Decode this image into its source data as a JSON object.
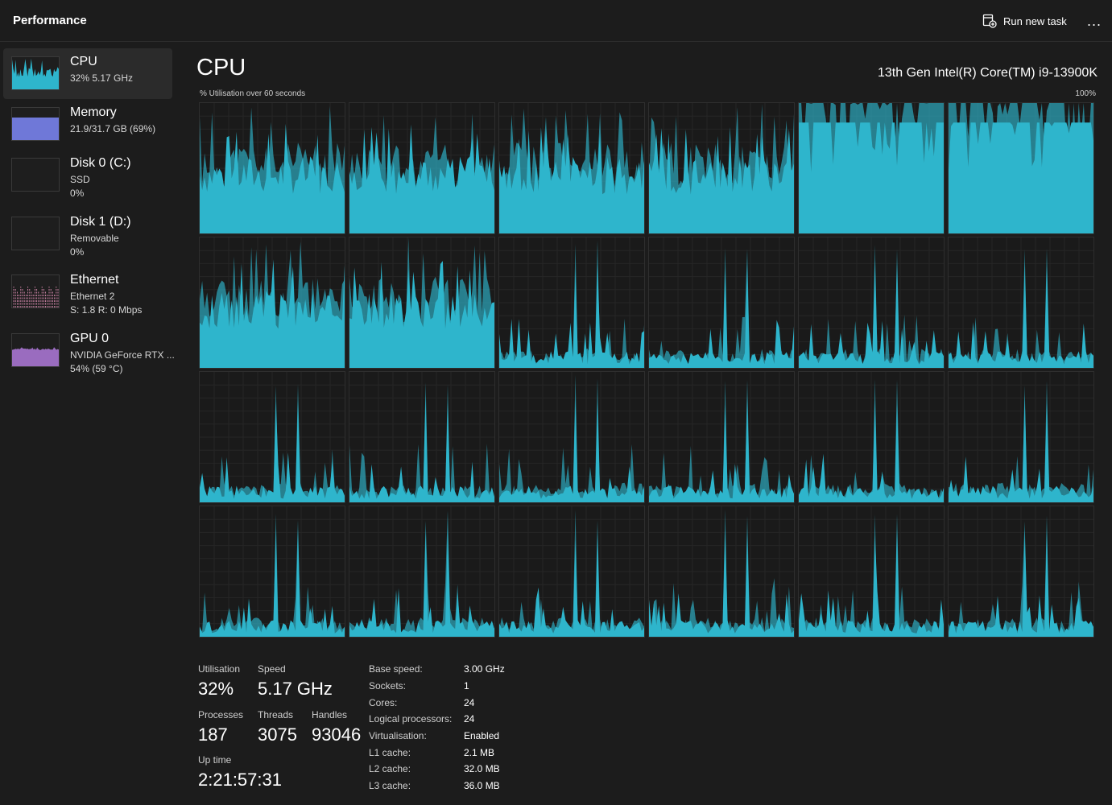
{
  "header": {
    "title": "Performance",
    "run_new_task": "Run new task",
    "more": "..."
  },
  "sidebar": {
    "items": [
      {
        "title": "CPU",
        "sub1": "32%  5.17 GHz",
        "sub2": ""
      },
      {
        "title": "Memory",
        "sub1": "21.9/31.7 GB (69%)",
        "sub2": ""
      },
      {
        "title": "Disk 0 (C:)",
        "sub1": "SSD",
        "sub2": "0%"
      },
      {
        "title": "Disk 1 (D:)",
        "sub1": "Removable",
        "sub2": "0%"
      },
      {
        "title": "Ethernet",
        "sub1": "Ethernet 2",
        "sub2": "S: 1.8  R: 0 Mbps"
      },
      {
        "title": "GPU 0",
        "sub1": "NVIDIA GeForce RTX ...",
        "sub2": "54%  (59 °C)"
      }
    ]
  },
  "main": {
    "title": "CPU",
    "model": "13th Gen Intel(R) Core(TM) i9-13900K",
    "axis_left": "% Utilisation over 60 seconds",
    "axis_right": "100%"
  },
  "stats": {
    "utilisation_label": "Utilisation",
    "utilisation": "32%",
    "speed_label": "Speed",
    "speed": "5.17 GHz",
    "processes_label": "Processes",
    "processes": "187",
    "threads_label": "Threads",
    "threads": "3075",
    "handles_label": "Handles",
    "handles": "93046",
    "uptime_label": "Up time",
    "uptime": "2:21:57:31"
  },
  "details": [
    {
      "key": "Base speed:",
      "value": "3.00 GHz"
    },
    {
      "key": "Sockets:",
      "value": "1"
    },
    {
      "key": "Cores:",
      "value": "24"
    },
    {
      "key": "Logical processors:",
      "value": "24"
    },
    {
      "key": "Virtualisation:",
      "value": "Enabled"
    },
    {
      "key": "L1 cache:",
      "value": "2.1 MB"
    },
    {
      "key": "L2 cache:",
      "value": "32.0 MB"
    },
    {
      "key": "L3 cache:",
      "value": "36.0 MB"
    }
  ],
  "colors": {
    "background": "#1c1c1c",
    "cpu_fill": "#2eb5cc",
    "cpu_fill_dark": "#1f8ea3",
    "memory_fill": "#6f78d8",
    "ethernet_line": "#d98bb0",
    "gpu_fill": "#9a6cbf"
  },
  "icons": {
    "run_task": "run-task-icon",
    "more": "more-icon"
  },
  "core_load_profiles": [
    "high",
    "high",
    "high",
    "high",
    "full",
    "full",
    "high",
    "high",
    "low",
    "low",
    "low",
    "low",
    "low",
    "low",
    "low",
    "low",
    "low",
    "low",
    "low",
    "low",
    "low",
    "low",
    "low",
    "low"
  ]
}
